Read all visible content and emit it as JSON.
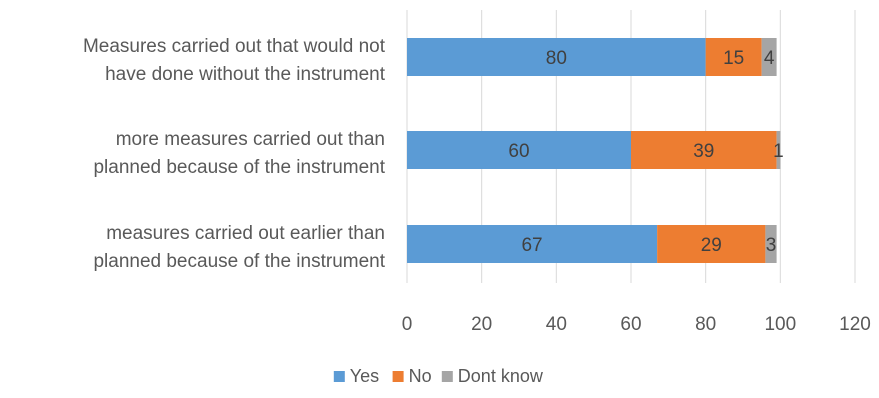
{
  "chart_data": {
    "type": "bar",
    "orientation": "horizontal",
    "stacked": true,
    "categories": [
      [
        "Measures carried out that would not",
        "have done without the instrument"
      ],
      [
        "more measures carried out than",
        "planned because of the instrument"
      ],
      [
        "measures carried out earlier than",
        "planned because of the instrument"
      ]
    ],
    "series": [
      {
        "name": "Yes",
        "color": "#5b9bd5",
        "values": [
          80,
          60,
          67
        ]
      },
      {
        "name": "No",
        "color": "#ed7d31",
        "values": [
          15,
          39,
          29
        ]
      },
      {
        "name": "Dont know",
        "color": "#a5a5a5",
        "values": [
          4,
          1,
          3
        ]
      }
    ],
    "xlim": [
      0,
      120
    ],
    "xticks": [
      0,
      20,
      40,
      60,
      80,
      100,
      120
    ],
    "grid": true,
    "legend": "bottom",
    "title": "",
    "xlabel": "",
    "ylabel": ""
  }
}
